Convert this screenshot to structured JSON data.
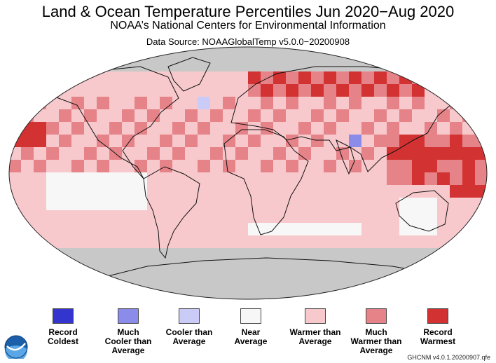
{
  "header": {
    "title": "Land & Ocean Temperature Percentiles Jun 2020−Aug 2020",
    "subtitle": "NOAA’s National Centers for Environmental Information",
    "source": "Data Source: NOAAGlobalTemp v5.0.0−20200908"
  },
  "colors": {
    "record_coldest": "#3434cf",
    "much_cooler": "#8b8bea",
    "cooler": "#cbcbf8",
    "near_average": "#f7f7f7",
    "warmer": "#f7c9cd",
    "much_warmer": "#e68388",
    "record_warmest": "#d23232",
    "no_data": "#c8c8c8"
  },
  "legend": [
    {
      "line1": "Record",
      "line2": "Coldest",
      "line3": "",
      "color": "#3434cf"
    },
    {
      "line1": "Much",
      "line2": "Cooler than",
      "line3": "Average",
      "color": "#8b8bea"
    },
    {
      "line1": "Cooler than",
      "line2": "Average",
      "line3": "",
      "color": "#cbcbf8"
    },
    {
      "line1": "Near",
      "line2": "Average",
      "line3": "",
      "color": "#f7f7f7"
    },
    {
      "line1": "Warmer than",
      "line2": "Average",
      "line3": "",
      "color": "#f7c9cd"
    },
    {
      "line1": "Much",
      "line2": "Warmer than",
      "line3": "Average",
      "color": "#e68388"
    },
    {
      "line1": "Record",
      "line2": "Warmest",
      "line3": "",
      "color": "#d23232"
    }
  ],
  "credit": "GHCNM v4.0.1.20200907.qfe",
  "logo_text": "NOAA"
}
